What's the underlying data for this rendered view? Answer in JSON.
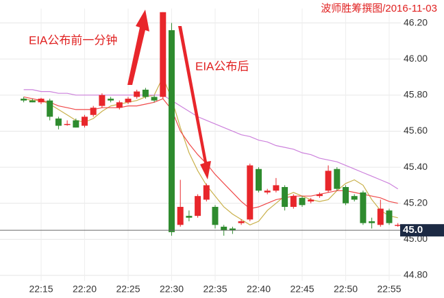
{
  "chart_data": {
    "type": "candlestick",
    "source": "波师胜筹撰图/2016-11-03",
    "annotations": [
      "EIA公布前一分钟",
      "EIA公布后"
    ],
    "categories": [
      null,
      null,
      "22:15",
      null,
      null,
      null,
      null,
      "22:20",
      null,
      null,
      null,
      null,
      "22:25",
      null,
      null,
      null,
      null,
      "22:30",
      null,
      null,
      null,
      null,
      "22:35",
      null,
      null,
      null,
      null,
      "22:40",
      null,
      null,
      null,
      null,
      "22:45",
      null,
      null,
      null,
      null,
      "22:50",
      null,
      null,
      null,
      null,
      "22:55",
      null
    ],
    "candles": {
      "open": [
        45.78,
        45.77,
        45.76,
        45.77,
        45.67,
        45.64,
        45.66,
        45.63,
        45.69,
        45.74,
        45.78,
        45.73,
        45.76,
        45.79,
        45.83,
        45.79,
        45.79,
        46.16,
        45.08,
        45.13,
        45.13,
        45.22,
        45.18,
        45.07,
        45.06,
        45.09,
        45.11,
        45.39,
        45.26,
        45.27,
        45.29,
        45.18,
        45.23,
        45.21,
        45.24,
        45.27,
        45.39,
        45.29,
        45.24,
        45.26,
        45.1,
        45.08,
        45.16,
        45.08
      ],
      "high": [
        45.79,
        45.78,
        45.785,
        45.78,
        45.68,
        45.66,
        45.67,
        45.69,
        45.74,
        45.81,
        45.79,
        45.77,
        45.79,
        45.83,
        45.84,
        45.8,
        46.26,
        46.2,
        45.33,
        45.16,
        45.25,
        45.31,
        45.19,
        45.08,
        45.07,
        45.11,
        45.42,
        45.4,
        45.28,
        45.34,
        45.3,
        45.25,
        45.24,
        45.23,
        45.26,
        45.41,
        45.4,
        45.3,
        45.25,
        45.27,
        45.12,
        45.22,
        45.17,
        45.09
      ],
      "low": [
        45.76,
        45.76,
        45.75,
        45.66,
        45.61,
        45.63,
        45.62,
        45.62,
        45.68,
        45.73,
        45.76,
        45.72,
        45.75,
        45.78,
        45.78,
        45.76,
        45.78,
        45.02,
        45.07,
        45.1,
        45.12,
        45.21,
        45.06,
        45.02,
        45.03,
        45.08,
        45.1,
        45.26,
        45.25,
        45.26,
        45.16,
        45.17,
        45.18,
        45.2,
        45.23,
        45.26,
        45.27,
        45.19,
        45.21,
        45.08,
        45.06,
        45.07,
        45.08,
        45.07
      ],
      "close": [
        45.77,
        45.76,
        45.78,
        45.68,
        45.63,
        45.64,
        45.62,
        45.68,
        45.73,
        45.8,
        45.77,
        45.76,
        45.78,
        45.82,
        45.79,
        45.77,
        46.26,
        45.04,
        45.18,
        45.12,
        45.24,
        45.3,
        45.08,
        45.05,
        45.05,
        45.1,
        45.41,
        45.27,
        45.27,
        45.3,
        45.18,
        45.24,
        45.19,
        45.22,
        45.25,
        45.38,
        45.28,
        45.2,
        45.22,
        45.09,
        45.09,
        45.17,
        45.09,
        45.08
      ]
    },
    "up_color": "#e8262b",
    "down_color": "#2e8b2e",
    "series": [
      {
        "color": "#c9b04a",
        "values": [
          45.78,
          45.77,
          45.77,
          45.75,
          45.72,
          45.69,
          45.66,
          45.65,
          45.67,
          45.71,
          45.74,
          45.75,
          45.76,
          45.77,
          45.79,
          45.8,
          45.9,
          45.78,
          45.62,
          45.48,
          45.38,
          45.3,
          45.24,
          45.18,
          45.14,
          45.11,
          45.08,
          45.1,
          45.16,
          45.2,
          45.24,
          45.26,
          45.24,
          45.22,
          45.21,
          45.22,
          45.27,
          45.31,
          45.33,
          45.3,
          45.22,
          45.16,
          45.13,
          45.12
        ]
      },
      {
        "color": "#f04848",
        "values": [
          45.79,
          45.78,
          45.77,
          45.76,
          45.74,
          45.73,
          45.72,
          45.72,
          45.72,
          45.73,
          45.73,
          45.73,
          45.74,
          45.74,
          45.75,
          45.76,
          45.78,
          45.72,
          45.6,
          45.53,
          45.47,
          45.42,
          45.36,
          45.31,
          45.26,
          45.21,
          45.17,
          45.18,
          45.2,
          45.22,
          45.23,
          45.24,
          45.24,
          45.24,
          45.25,
          45.26,
          45.27,
          45.27,
          45.26,
          45.25,
          45.24,
          45.23,
          45.21,
          45.2
        ]
      },
      {
        "color": "#cc80dc",
        "values": [
          45.83,
          45.83,
          45.82,
          45.82,
          45.81,
          45.81,
          45.8,
          45.8,
          45.8,
          45.8,
          45.8,
          45.8,
          45.8,
          45.8,
          45.8,
          45.8,
          45.8,
          45.77,
          45.74,
          45.71,
          45.68,
          45.66,
          45.64,
          45.62,
          45.6,
          45.58,
          45.57,
          45.55,
          45.54,
          45.52,
          45.51,
          45.5,
          45.48,
          45.47,
          45.45,
          45.44,
          45.43,
          45.41,
          45.39,
          45.37,
          45.35,
          45.33,
          45.31,
          45.28
        ]
      }
    ],
    "last_price": {
      "value": 45.05,
      "label": "45.0"
    },
    "ylim": [
      44.76,
      46.28
    ],
    "yticks": [
      {
        "value": 44.8,
        "label": "44.80"
      },
      {
        "value": 45.0,
        "label": "45.00"
      },
      {
        "value": 45.2,
        "label": "45.20"
      },
      {
        "value": 45.4,
        "label": "45.40"
      },
      {
        "value": 45.6,
        "label": "45.60"
      },
      {
        "value": 45.8,
        "label": "45.80"
      },
      {
        "value": 46.0,
        "label": "46.00"
      },
      {
        "value": 46.2,
        "label": "46.20"
      }
    ],
    "grid": true
  }
}
